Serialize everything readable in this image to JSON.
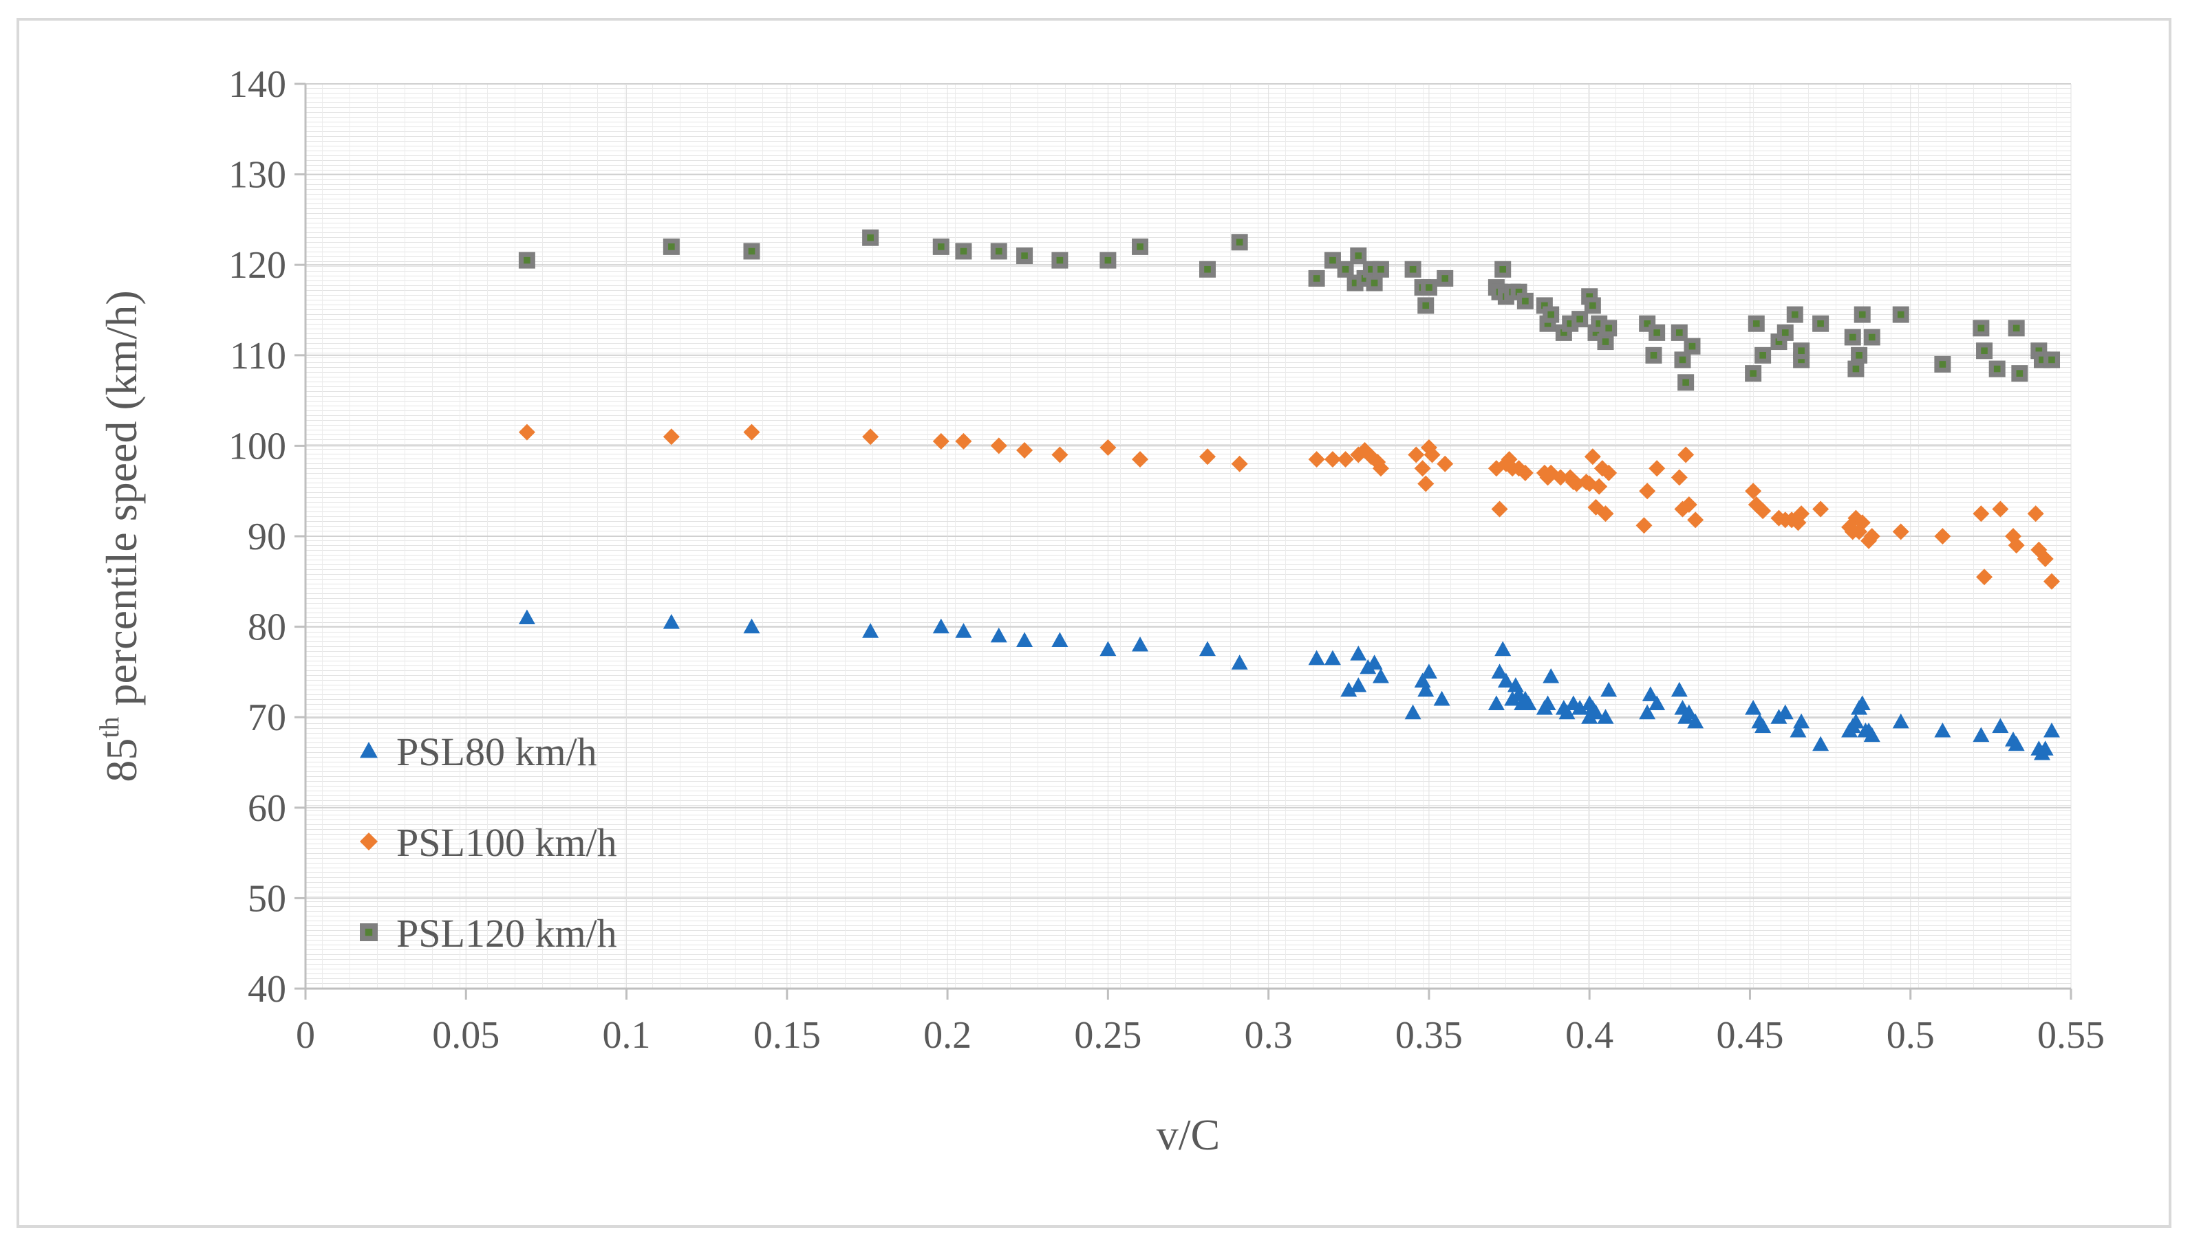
{
  "chart_data": {
    "type": "scatter",
    "title": "",
    "xlabel": "v/C",
    "ylabel": "85th percentile speed  (km/h)",
    "ylabel_parts": {
      "base": "85",
      "sup": "th",
      "rest": " percentile speed  (km/h)"
    },
    "xlim": [
      0,
      0.55
    ],
    "ylim": [
      40,
      140
    ],
    "x_ticks": [
      0,
      0.05,
      0.1,
      0.15,
      0.2,
      0.25,
      0.3,
      0.35,
      0.4,
      0.45,
      0.5,
      0.55
    ],
    "x_tick_labels": [
      "0",
      "0.05",
      "0.1",
      "0.15",
      "0.2",
      "0.25",
      "0.3",
      "0.35",
      "0.4",
      "0.45",
      "0.5",
      "0.55"
    ],
    "y_ticks": [
      40,
      50,
      60,
      70,
      80,
      90,
      100,
      110,
      120,
      130,
      140
    ],
    "y_tick_labels": [
      "40",
      "50",
      "60",
      "70",
      "80",
      "90",
      "100",
      "110",
      "120",
      "130",
      "140"
    ],
    "grid": true,
    "legend_position": "left",
    "series": [
      {
        "name": "PSL80 km/h",
        "marker": "triangle",
        "color": "#1f6fc0",
        "x": [
          0.069,
          0.114,
          0.139,
          0.176,
          0.198,
          0.205,
          0.216,
          0.224,
          0.235,
          0.25,
          0.26,
          0.281,
          0.291,
          0.315,
          0.32,
          0.325,
          0.328,
          0.328,
          0.331,
          0.333,
          0.335,
          0.345,
          0.348,
          0.349,
          0.35,
          0.354,
          0.371,
          0.372,
          0.373,
          0.374,
          0.376,
          0.377,
          0.378,
          0.379,
          0.38,
          0.381,
          0.386,
          0.387,
          0.388,
          0.392,
          0.393,
          0.395,
          0.397,
          0.4,
          0.4,
          0.401,
          0.402,
          0.405,
          0.406,
          0.418,
          0.419,
          0.421,
          0.428,
          0.429,
          0.43,
          0.431,
          0.433,
          0.451,
          0.453,
          0.454,
          0.459,
          0.461,
          0.465,
          0.466,
          0.472,
          0.481,
          0.482,
          0.483,
          0.484,
          0.485,
          0.486,
          0.487,
          0.488,
          0.497,
          0.51,
          0.522,
          0.528,
          0.532,
          0.533,
          0.54,
          0.541,
          0.542,
          0.544
        ],
        "y": [
          81,
          80.5,
          80,
          79.5,
          80,
          79.5,
          79,
          78.5,
          78.5,
          77.5,
          78,
          77.5,
          76,
          76.5,
          76.5,
          73,
          73.5,
          77,
          75.5,
          76,
          74.5,
          70.5,
          74,
          73,
          75,
          72,
          71.5,
          75,
          77.5,
          74,
          72,
          73.5,
          72.5,
          71.5,
          72,
          71.5,
          71,
          71.5,
          74.5,
          71,
          70.5,
          71.5,
          71,
          70,
          71.5,
          71,
          70.5,
          70,
          73,
          70.5,
          72.5,
          71.5,
          73,
          71,
          70,
          70.5,
          69.5,
          71,
          69.5,
          69,
          70,
          70.5,
          68.5,
          69.5,
          67,
          68.5,
          69,
          69.5,
          71,
          71.5,
          68.5,
          68.5,
          68,
          69.5,
          68.5,
          68,
          69,
          67.5,
          67,
          66.5,
          66,
          66.5,
          68.5
        ]
      },
      {
        "name": "PSL100 km/h",
        "marker": "diamond",
        "color": "#ed7d31",
        "x": [
          0.069,
          0.114,
          0.139,
          0.176,
          0.198,
          0.205,
          0.216,
          0.224,
          0.235,
          0.25,
          0.26,
          0.281,
          0.291,
          0.315,
          0.32,
          0.324,
          0.328,
          0.33,
          0.332,
          0.334,
          0.335,
          0.346,
          0.348,
          0.349,
          0.35,
          0.351,
          0.355,
          0.371,
          0.372,
          0.374,
          0.375,
          0.376,
          0.378,
          0.38,
          0.386,
          0.387,
          0.388,
          0.391,
          0.394,
          0.395,
          0.396,
          0.399,
          0.4,
          0.401,
          0.402,
          0.403,
          0.404,
          0.405,
          0.406,
          0.417,
          0.418,
          0.421,
          0.428,
          0.429,
          0.43,
          0.431,
          0.433,
          0.451,
          0.452,
          0.454,
          0.459,
          0.461,
          0.463,
          0.465,
          0.466,
          0.472,
          0.481,
          0.482,
          0.483,
          0.484,
          0.485,
          0.487,
          0.488,
          0.497,
          0.51,
          0.522,
          0.523,
          0.528,
          0.532,
          0.533,
          0.539,
          0.54,
          0.542,
          0.544
        ],
        "y": [
          101.5,
          101,
          101.5,
          101,
          100.5,
          100.5,
          100,
          99.5,
          99,
          99.8,
          98.5,
          98.8,
          98,
          98.5,
          98.5,
          98.5,
          99,
          99.5,
          98.8,
          98.2,
          97.5,
          99,
          97.5,
          95.8,
          99.8,
          99,
          98,
          97.5,
          93,
          98,
          98.5,
          97.5,
          97.5,
          97,
          97,
          96.5,
          97,
          96.5,
          96.5,
          96,
          95.8,
          96,
          95.8,
          98.8,
          93.2,
          95.5,
          97.5,
          92.5,
          97,
          91.2,
          95,
          97.5,
          96.5,
          93,
          99,
          93.5,
          91.8,
          95,
          93.5,
          92.8,
          92,
          91.8,
          91.8,
          91.5,
          92.5,
          93,
          91,
          90.5,
          92,
          90.5,
          91.5,
          89.5,
          90,
          90.5,
          90,
          92.5,
          85.5,
          93,
          90,
          89,
          92.5,
          88.5,
          87.5,
          85
        ]
      },
      {
        "name": "PSL120 km/h",
        "marker": "square",
        "color": "#7f7f7f",
        "inner_color": "#548235",
        "x": [
          0.069,
          0.114,
          0.139,
          0.176,
          0.198,
          0.205,
          0.216,
          0.224,
          0.235,
          0.25,
          0.26,
          0.281,
          0.291,
          0.315,
          0.32,
          0.324,
          0.327,
          0.328,
          0.33,
          0.332,
          0.333,
          0.335,
          0.345,
          0.348,
          0.349,
          0.35,
          0.355,
          0.371,
          0.372,
          0.373,
          0.374,
          0.376,
          0.378,
          0.38,
          0.386,
          0.387,
          0.388,
          0.392,
          0.394,
          0.397,
          0.4,
          0.401,
          0.402,
          0.403,
          0.405,
          0.406,
          0.418,
          0.42,
          0.421,
          0.428,
          0.429,
          0.43,
          0.432,
          0.451,
          0.452,
          0.454,
          0.459,
          0.461,
          0.464,
          0.466,
          0.466,
          0.472,
          0.482,
          0.483,
          0.484,
          0.485,
          0.488,
          0.497,
          0.51,
          0.522,
          0.523,
          0.527,
          0.533,
          0.534,
          0.54,
          0.541,
          0.544
        ],
        "y": [
          120.5,
          122,
          121.5,
          123,
          122,
          121.5,
          121.5,
          121,
          120.5,
          120.5,
          122,
          119.5,
          122.5,
          118.5,
          120.5,
          119.5,
          118,
          121,
          118.5,
          119.5,
          118,
          119.5,
          119.5,
          117.5,
          115.5,
          117.5,
          118.5,
          117.5,
          117,
          119.5,
          116.5,
          117,
          117,
          116,
          115.5,
          113.5,
          114.5,
          112.5,
          113.5,
          114,
          116.5,
          115.5,
          112.5,
          113.5,
          111.5,
          113,
          113.5,
          110,
          112.5,
          112.5,
          109.5,
          107,
          111,
          108,
          113.5,
          110,
          111.5,
          112.5,
          114.5,
          109.5,
          110.5,
          113.5,
          112,
          108.5,
          110,
          114.5,
          112,
          114.5,
          109,
          113,
          110.5,
          108.5,
          113,
          108,
          110.5,
          109.5,
          109.5
        ]
      }
    ]
  }
}
